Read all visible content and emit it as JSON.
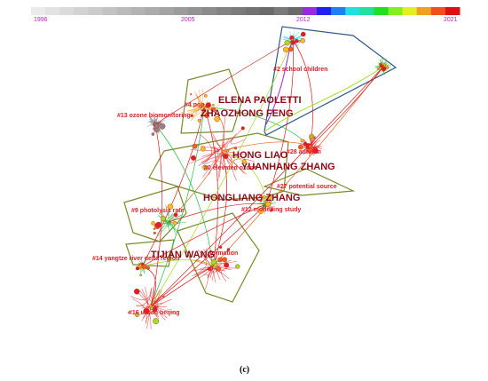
{
  "colorbar": {
    "years": [
      "1996",
      "2005",
      "2012",
      "2021"
    ]
  },
  "clusters": [
    "#2 school children",
    "#4 pop",
    "#13 ozone biomonitoring",
    "#28 autumn",
    "#0 elevated ozone",
    "#27 potential source",
    "#9 photolysis rate",
    "#12 modelling study",
    "#14 yangtze river delta region",
    "formation",
    "#16 urban beijing"
  ],
  "authors": [
    "ELENA PAOLETTI",
    "ZHAOZHONG FENG",
    "HONG LIAO",
    "YUANHANG ZHANG",
    "HONGLIANG ZHANG",
    "TIJIAN WANG"
  ],
  "caption": "(c)"
}
